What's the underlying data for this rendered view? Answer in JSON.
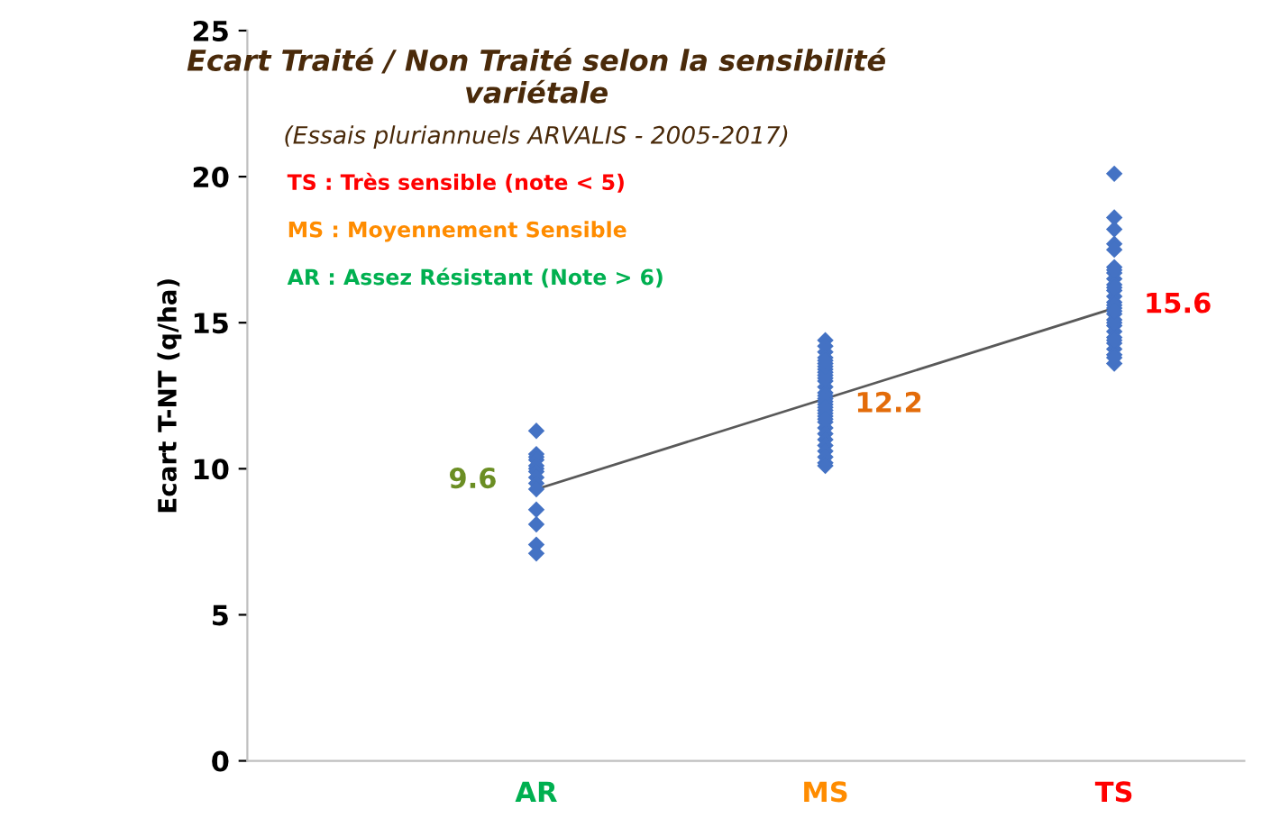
{
  "chart_data": {
    "type": "scatter",
    "title": "Ecart Traité / Non Traité selon la sensibilité\nvariétale",
    "subtitle": "(Essais pluriannuels ARVALIS - 2005-2017)",
    "ylabel": "Ecart T-NT (q/ha)",
    "categories": [
      "AR",
      "MS",
      "TS"
    ],
    "series": [
      {
        "color": "#4472c4",
        "marker": "diamond",
        "x": [
          "AR",
          "AR",
          "AR",
          "AR",
          "AR",
          "AR",
          "AR",
          "AR",
          "AR",
          "AR",
          "AR",
          "AR",
          "AR",
          "AR",
          "MS",
          "MS",
          "MS",
          "MS",
          "MS",
          "MS",
          "MS",
          "MS",
          "MS",
          "MS",
          "MS",
          "MS",
          "MS",
          "MS",
          "MS",
          "MS",
          "MS",
          "MS",
          "MS",
          "MS",
          "MS",
          "MS",
          "MS",
          "MS",
          "MS",
          "MS",
          "MS",
          "MS",
          "MS",
          "MS",
          "MS",
          "MS",
          "TS",
          "TS",
          "TS",
          "TS",
          "TS",
          "TS",
          "TS",
          "TS",
          "TS",
          "TS",
          "TS",
          "TS",
          "TS",
          "TS",
          "TS",
          "TS",
          "TS",
          "TS",
          "TS",
          "TS",
          "TS",
          "TS",
          "TS",
          "TS",
          "TS",
          "TS",
          "TS",
          "TS",
          "TS"
        ],
        "values": [
          11.3,
          10.5,
          10.4,
          10.3,
          10.1,
          10.0,
          9.9,
          9.7,
          9.5,
          9.3,
          8.6,
          8.1,
          7.4,
          7.1,
          14.4,
          14.2,
          14.0,
          13.8,
          13.6,
          13.4,
          13.2,
          13.0,
          12.8,
          12.6,
          12.4,
          12.2,
          12.0,
          11.8,
          11.6,
          11.4,
          11.2,
          11.0,
          10.8,
          10.6,
          10.4,
          10.2,
          10.1,
          12.5,
          12.3,
          12.1,
          11.9,
          11.7,
          13.1,
          13.3,
          13.5,
          13.7,
          20.1,
          18.6,
          18.2,
          17.7,
          17.5,
          16.9,
          16.7,
          16.5,
          16.3,
          16.1,
          15.9,
          15.7,
          15.5,
          15.3,
          15.1,
          14.9,
          14.7,
          14.5,
          14.3,
          14.1,
          13.9,
          13.6,
          16.8,
          16.2,
          15.6,
          15.0,
          14.4,
          13.8,
          15.4
        ]
      },
      {
        "type": "line",
        "color": "#595959",
        "x": [
          "AR",
          "MS",
          "TS"
        ],
        "values": [
          9.3,
          12.4,
          15.5
        ]
      }
    ],
    "annotations": [
      "TS : Très sensible (note < 5)",
      "MS : Moyennement Sensible",
      "AR : Assez Résistant (Note > 6)",
      {
        "text": "9.6",
        "x": "AR",
        "y": 9.6
      },
      {
        "text": "12.2",
        "x": "MS",
        "y": 12.2
      },
      {
        "text": "15.6",
        "x": "TS",
        "y": 15.6
      }
    ],
    "ylim": [
      0,
      25
    ],
    "yticks": [
      0,
      5,
      10,
      15,
      20,
      25
    ],
    "grid": false,
    "legend": false
  }
}
